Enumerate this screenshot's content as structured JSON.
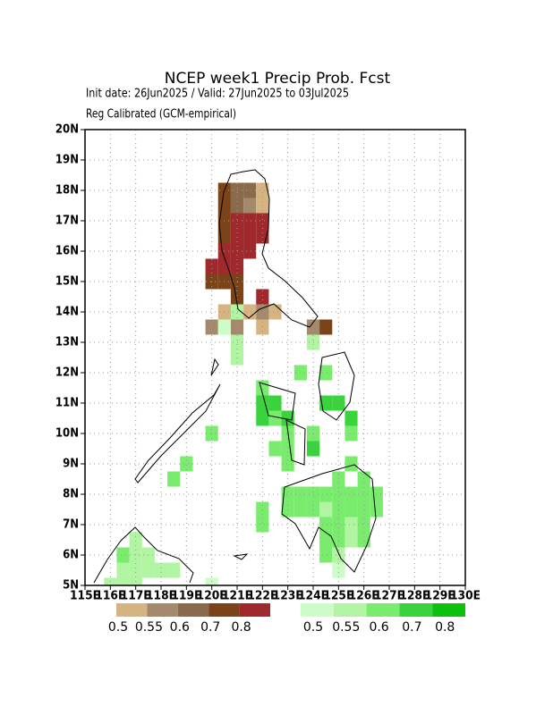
{
  "map": {
    "title": "NCEP week1 Precip Prob. Fcst",
    "subtitle": "Init date: 26Jun2025 / Valid: 27Jun2025 to 03Jul2025",
    "note": "Reg Calibrated (GCM-empirical)",
    "xlim": [
      115,
      130
    ],
    "ylim": [
      5,
      20
    ],
    "xticks": [
      {
        "value": 115,
        "label": "115E"
      },
      {
        "value": 116,
        "label": "116E"
      },
      {
        "value": 117,
        "label": "117E"
      },
      {
        "value": 118,
        "label": "118E"
      },
      {
        "value": 119,
        "label": "119E"
      },
      {
        "value": 120,
        "label": "120E"
      },
      {
        "value": 121,
        "label": "121E"
      },
      {
        "value": 122,
        "label": "122E"
      },
      {
        "value": 123,
        "label": "123E"
      },
      {
        "value": 124,
        "label": "124E"
      },
      {
        "value": 125,
        "label": "125E"
      },
      {
        "value": 126,
        "label": "126E"
      },
      {
        "value": 127,
        "label": "127E"
      },
      {
        "value": 128,
        "label": "128E"
      },
      {
        "value": 129,
        "label": "129E"
      },
      {
        "value": 130,
        "label": "130E"
      }
    ],
    "yticks": [
      {
        "value": 5,
        "label": "5N"
      },
      {
        "value": 6,
        "label": "6N"
      },
      {
        "value": 7,
        "label": "7N"
      },
      {
        "value": 8,
        "label": "8N"
      },
      {
        "value": 9,
        "label": "9N"
      },
      {
        "value": 10,
        "label": "10N"
      },
      {
        "value": 11,
        "label": "11N"
      },
      {
        "value": 12,
        "label": "12N"
      },
      {
        "value": 13,
        "label": "13N"
      },
      {
        "value": 14,
        "label": "14N"
      },
      {
        "value": 15,
        "label": "15N"
      },
      {
        "value": 16,
        "label": "16N"
      },
      {
        "value": 17,
        "label": "17N"
      },
      {
        "value": 18,
        "label": "18N"
      },
      {
        "value": 19,
        "label": "19N"
      },
      {
        "value": 20,
        "label": "20N"
      }
    ],
    "grid": true,
    "legend": {
      "dry": {
        "levels": [
          0.5,
          0.55,
          0.6,
          0.7,
          0.8
        ],
        "colors": [
          "#d5b482",
          "#a5896d",
          "#8b6a4b",
          "#7b4318",
          "#a0292d"
        ]
      },
      "wet": {
        "levels": [
          0.5,
          0.55,
          0.6,
          0.7,
          0.8
        ],
        "colors": [
          "#cdfdc7",
          "#b1f5a2",
          "#7aec6d",
          "#39d43b",
          "#0bc10b"
        ]
      }
    },
    "dry_cells": [
      [
        120.5,
        18,
        0.7
      ],
      [
        121,
        18,
        0.6
      ],
      [
        121.5,
        18,
        0.6
      ],
      [
        122,
        18,
        0.5
      ],
      [
        120.5,
        17.5,
        0.7
      ],
      [
        121,
        17.5,
        0.6
      ],
      [
        121.5,
        17.5,
        0.55
      ],
      [
        122,
        17.5,
        0.5
      ],
      [
        120.5,
        17,
        0.7
      ],
      [
        121,
        17,
        0.8
      ],
      [
        121.5,
        17,
        0.8
      ],
      [
        122,
        17,
        0.8
      ],
      [
        120.5,
        16.5,
        0.7
      ],
      [
        121,
        16.5,
        0.8
      ],
      [
        121.5,
        16.5,
        0.8
      ],
      [
        122,
        16.5,
        0.8
      ],
      [
        120.5,
        16,
        0.8
      ],
      [
        121,
        16,
        0.8
      ],
      [
        121.5,
        16,
        0.8
      ],
      [
        120,
        15.5,
        0.8
      ],
      [
        120.5,
        15.5,
        0.8
      ],
      [
        121,
        15.5,
        0.8
      ],
      [
        120,
        15,
        0.7
      ],
      [
        120.5,
        15,
        0.7
      ],
      [
        121,
        15,
        0.7
      ],
      [
        121,
        14.5,
        0.7
      ],
      [
        122,
        14.5,
        0.8
      ],
      [
        120.5,
        14,
        0.5
      ],
      [
        121.5,
        14,
        0.5
      ],
      [
        122,
        14,
        0.55
      ],
      [
        122.5,
        14,
        0.5
      ],
      [
        120,
        13.5,
        0.55
      ],
      [
        121,
        13.5,
        0.55
      ],
      [
        122,
        13.5,
        0.5
      ],
      [
        124,
        13.5,
        0.55
      ],
      [
        124.5,
        13.5,
        0.7
      ]
    ],
    "wet_cells": [
      [
        121,
        14,
        0.55
      ],
      [
        120.5,
        13.5,
        0.5
      ],
      [
        121,
        13,
        0.55
      ],
      [
        124,
        13,
        0.55
      ],
      [
        121,
        12.5,
        0.55
      ],
      [
        123.5,
        12,
        0.6
      ],
      [
        124.5,
        12,
        0.6
      ],
      [
        122,
        11.5,
        0.6
      ],
      [
        122,
        11,
        0.7
      ],
      [
        122.5,
        11,
        0.7
      ],
      [
        124.5,
        11,
        0.7
      ],
      [
        125,
        11,
        0.7
      ],
      [
        122,
        10.5,
        0.7
      ],
      [
        122.5,
        10.5,
        0.6
      ],
      [
        123,
        10.5,
        0.7
      ],
      [
        125.5,
        10.5,
        0.7
      ],
      [
        120,
        10,
        0.6
      ],
      [
        123,
        10,
        0.6
      ],
      [
        124,
        10,
        0.6
      ],
      [
        125.5,
        10,
        0.6
      ],
      [
        122.5,
        9.5,
        0.6
      ],
      [
        123,
        9.5,
        0.6
      ],
      [
        124,
        9.5,
        0.7
      ],
      [
        119,
        9,
        0.6
      ],
      [
        123,
        9,
        0.6
      ],
      [
        125.5,
        9,
        0.6
      ],
      [
        118.5,
        8.5,
        0.6
      ],
      [
        125,
        8.5,
        0.6
      ],
      [
        126,
        8.5,
        0.6
      ],
      [
        123,
        8,
        0.6
      ],
      [
        123.5,
        8,
        0.6
      ],
      [
        124,
        8,
        0.6
      ],
      [
        124.5,
        8,
        0.6
      ],
      [
        125,
        8,
        0.6
      ],
      [
        125.5,
        8,
        0.6
      ],
      [
        126,
        8,
        0.6
      ],
      [
        126.5,
        8,
        0.6
      ],
      [
        122,
        7.5,
        0.6
      ],
      [
        123,
        7.5,
        0.6
      ],
      [
        123.5,
        7.5,
        0.6
      ],
      [
        124,
        7.5,
        0.6
      ],
      [
        124.5,
        7.5,
        0.55
      ],
      [
        125,
        7.5,
        0.6
      ],
      [
        125.5,
        7.5,
        0.6
      ],
      [
        126,
        7.5,
        0.6
      ],
      [
        126.5,
        7.5,
        0.6
      ],
      [
        122,
        7,
        0.6
      ],
      [
        124.5,
        7,
        0.6
      ],
      [
        125,
        7,
        0.6
      ],
      [
        125.5,
        7,
        0.55
      ],
      [
        126,
        7,
        0.6
      ],
      [
        117,
        6.5,
        0.55
      ],
      [
        124.5,
        6.5,
        0.6
      ],
      [
        125,
        6.5,
        0.6
      ],
      [
        125.5,
        6.5,
        0.55
      ],
      [
        126,
        6.5,
        0.6
      ],
      [
        116.5,
        6,
        0.6
      ],
      [
        117,
        6,
        0.55
      ],
      [
        117.5,
        6,
        0.55
      ],
      [
        124.5,
        6,
        0.6
      ],
      [
        125,
        6,
        0.55
      ],
      [
        116.5,
        5.5,
        0.55
      ],
      [
        117,
        5.5,
        0.55
      ],
      [
        117.5,
        5.5,
        0.55
      ],
      [
        118,
        5.5,
        0.55
      ],
      [
        118.5,
        5.5,
        0.55
      ],
      [
        125,
        5.5,
        0.5
      ],
      [
        116,
        5,
        0.55
      ],
      [
        116.5,
        5,
        0.55
      ],
      [
        117,
        5,
        0.55
      ],
      [
        120,
        5,
        0.5
      ]
    ]
  }
}
